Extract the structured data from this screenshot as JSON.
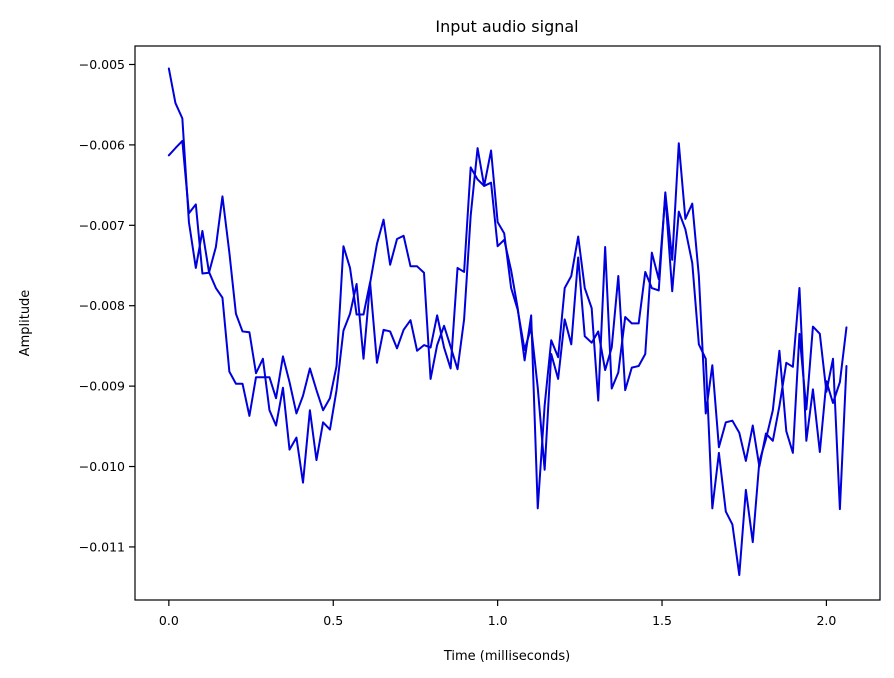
{
  "chart_data": {
    "type": "line",
    "title": "Input audio signal",
    "xlabel": "Time (milliseconds)",
    "ylabel": "Amplitude",
    "xlim": [
      -0.103,
      2.163
    ],
    "ylim": [
      -0.01166,
      -0.00477
    ],
    "x_ticks": [
      0.0,
      0.5,
      1.0,
      1.5,
      2.0
    ],
    "x_tick_labels": [
      "0.0",
      "0.5",
      "1.0",
      "1.5",
      "2.0"
    ],
    "y_ticks": [
      -0.005,
      -0.006,
      -0.007,
      -0.008,
      -0.009,
      -0.01,
      -0.011
    ],
    "y_tick_labels": [
      "−0.005",
      "−0.006",
      "−0.007",
      "−0.008",
      "−0.009",
      "−0.010",
      "−0.011"
    ],
    "grid": false,
    "legend": false,
    "line_color": "#0000dd",
    "series": [
      {
        "x": [
          0.0,
          0.02,
          0.041,
          0.061,
          0.082,
          0.102,
          0.122,
          0.143,
          0.163,
          0.184,
          0.204,
          0.224,
          0.245,
          0.265,
          0.286,
          0.306,
          0.326,
          0.347,
          0.367,
          0.388,
          0.408,
          0.429,
          0.449,
          0.469,
          0.49,
          0.51,
          0.531,
          0.551,
          0.571,
          0.592,
          0.612,
          0.633,
          0.653,
          0.673,
          0.694,
          0.714,
          0.735,
          0.755,
          0.776,
          0.796,
          0.816,
          0.837,
          0.857,
          0.878,
          0.898,
          0.918,
          0.939,
          0.959,
          0.98,
          1.0,
          1.02,
          1.041,
          1.061,
          1.082,
          1.102,
          1.122,
          1.143,
          1.163,
          1.184,
          1.204,
          1.224,
          1.245,
          1.265,
          1.286,
          1.306,
          1.327,
          1.347,
          1.367,
          1.388,
          1.408,
          1.429,
          1.449,
          1.469,
          1.49,
          1.51,
          1.531,
          1.551,
          1.571,
          1.592,
          1.612,
          1.633,
          1.653,
          1.673,
          1.694,
          1.714,
          1.735,
          1.755,
          1.776,
          1.796,
          1.816,
          1.837,
          1.857,
          1.878,
          1.898,
          1.918,
          1.939,
          1.959,
          1.98,
          2.0,
          2.02,
          2.041,
          2.061
        ],
        "y": [
          -0.00505,
          -0.00548,
          -0.00567,
          -0.00696,
          -0.00753,
          -0.00707,
          -0.00758,
          -0.00778,
          -0.0079,
          -0.00882,
          -0.00897,
          -0.00897,
          -0.00937,
          -0.00889,
          -0.00889,
          -0.00889,
          -0.00915,
          -0.00863,
          -0.00895,
          -0.00934,
          -0.00912,
          -0.00878,
          -0.00905,
          -0.0093,
          -0.00915,
          -0.00875,
          -0.00726,
          -0.00753,
          -0.00811,
          -0.00811,
          -0.00771,
          -0.00871,
          -0.0083,
          -0.00832,
          -0.00853,
          -0.0083,
          -0.00818,
          -0.00856,
          -0.00849,
          -0.00852,
          -0.00812,
          -0.00852,
          -0.00878,
          -0.00753,
          -0.00758,
          -0.00628,
          -0.00643,
          -0.00651,
          -0.00647,
          -0.00726,
          -0.00718,
          -0.00756,
          -0.00803,
          -0.00868,
          -0.00812,
          -0.01052,
          -0.00924,
          -0.00843,
          -0.00864,
          -0.00778,
          -0.00763,
          -0.00714,
          -0.00778,
          -0.00803,
          -0.00918,
          -0.00727,
          -0.00903,
          -0.00883,
          -0.00814,
          -0.00822,
          -0.00822,
          -0.00758,
          -0.00778,
          -0.00781,
          -0.00659,
          -0.00743,
          -0.00598,
          -0.00692,
          -0.00673,
          -0.00763,
          -0.00934,
          -0.00874,
          -0.00976,
          -0.00945,
          -0.00943,
          -0.00958,
          -0.00993,
          -0.00949,
          -0.01,
          -0.00959,
          -0.00968,
          -0.00925,
          -0.00871,
          -0.00876,
          -0.00778,
          -0.00968,
          -0.00904,
          -0.00982,
          -0.00894,
          -0.00921,
          -0.00895,
          -0.00827
        ]
      },
      {
        "x": [
          0.0,
          0.02,
          0.041,
          0.061,
          0.082,
          0.102,
          0.122,
          0.143,
          0.163,
          0.184,
          0.204,
          0.224,
          0.245,
          0.265,
          0.286,
          0.306,
          0.326,
          0.347,
          0.367,
          0.388,
          0.408,
          0.429,
          0.449,
          0.469,
          0.49,
          0.51,
          0.531,
          0.551,
          0.571,
          0.592,
          0.612,
          0.633,
          0.653,
          0.673,
          0.694,
          0.714,
          0.735,
          0.755,
          0.776,
          0.796,
          0.816,
          0.837,
          0.857,
          0.878,
          0.898,
          0.918,
          0.939,
          0.959,
          0.98,
          1.0,
          1.02,
          1.041,
          1.061,
          1.082,
          1.102,
          1.122,
          1.143,
          1.163,
          1.184,
          1.204,
          1.224,
          1.245,
          1.265,
          1.286,
          1.306,
          1.327,
          1.347,
          1.367,
          1.388,
          1.408,
          1.429,
          1.449,
          1.469,
          1.49,
          1.51,
          1.531,
          1.551,
          1.571,
          1.592,
          1.612,
          1.633,
          1.653,
          1.673,
          1.694,
          1.714,
          1.735,
          1.755,
          1.776,
          1.796,
          1.816,
          1.837,
          1.857,
          1.878,
          1.898,
          1.918,
          1.939,
          1.959,
          1.98,
          2.0,
          2.02,
          2.041,
          2.061
        ],
        "y": [
          -0.00613,
          -0.00604,
          -0.00595,
          -0.00685,
          -0.00674,
          -0.0076,
          -0.00759,
          -0.00727,
          -0.00664,
          -0.00734,
          -0.0081,
          -0.00832,
          -0.00833,
          -0.00884,
          -0.00866,
          -0.0093,
          -0.00949,
          -0.00902,
          -0.00979,
          -0.00964,
          -0.0102,
          -0.0093,
          -0.00992,
          -0.00945,
          -0.00954,
          -0.00905,
          -0.00831,
          -0.0081,
          -0.00773,
          -0.00866,
          -0.00772,
          -0.00723,
          -0.00693,
          -0.00749,
          -0.00717,
          -0.00713,
          -0.00751,
          -0.00751,
          -0.00759,
          -0.00891,
          -0.00849,
          -0.00825,
          -0.00851,
          -0.00879,
          -0.00817,
          -0.00688,
          -0.00604,
          -0.00651,
          -0.00607,
          -0.00696,
          -0.0071,
          -0.00778,
          -0.00805,
          -0.00855,
          -0.00827,
          -0.00902,
          -0.01004,
          -0.0086,
          -0.00891,
          -0.00817,
          -0.00848,
          -0.0074,
          -0.00838,
          -0.00846,
          -0.00832,
          -0.0088,
          -0.00852,
          -0.00763,
          -0.00905,
          -0.00877,
          -0.00875,
          -0.0086,
          -0.00734,
          -0.00767,
          -0.00663,
          -0.00782,
          -0.00683,
          -0.00705,
          -0.00747,
          -0.00848,
          -0.00866,
          -0.01052,
          -0.00983,
          -0.01056,
          -0.01072,
          -0.01135,
          -0.01029,
          -0.01094,
          -0.00994,
          -0.00966,
          -0.0093,
          -0.00856,
          -0.00956,
          -0.00983,
          -0.00835,
          -0.00929,
          -0.00826,
          -0.00835,
          -0.00907,
          -0.00866,
          -0.01053,
          -0.00875
        ]
      }
    ]
  }
}
